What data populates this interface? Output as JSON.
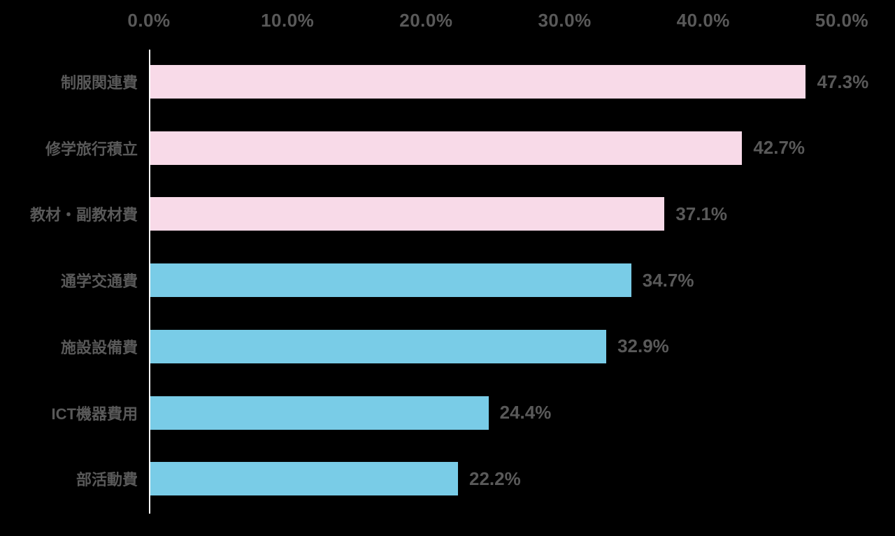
{
  "chart_data": {
    "type": "bar",
    "orientation": "horizontal",
    "title": "",
    "xlabel": "",
    "ylabel": "",
    "xlim": [
      0,
      50
    ],
    "x_ticks": [
      "0.0%",
      "10.0%",
      "20.0%",
      "30.0%",
      "40.0%",
      "50.0%"
    ],
    "grid": false,
    "legend": false,
    "categories": [
      "制服関連費",
      "修学旅行積立",
      "教材・副教材費",
      "通学交通費",
      "施設設備費",
      "ICT機器費用",
      "部活動費"
    ],
    "values": [
      47.3,
      42.7,
      37.1,
      34.7,
      32.9,
      24.4,
      22.2
    ],
    "value_labels": [
      "47.3%",
      "42.7%",
      "37.1%",
      "34.7%",
      "32.9%",
      "24.4%",
      "22.2%"
    ],
    "bar_colors": [
      "#F8DAE8",
      "#F8DAE8",
      "#F8DAE8",
      "#79CCE7",
      "#79CCE7",
      "#79CCE7",
      "#79CCE7"
    ]
  },
  "colors": {
    "pink_bar": "#F8DAE8",
    "blue_bar": "#79CCE7",
    "label_text": "#595959",
    "axis_line": "#FFFFFF",
    "background": "#000000"
  }
}
